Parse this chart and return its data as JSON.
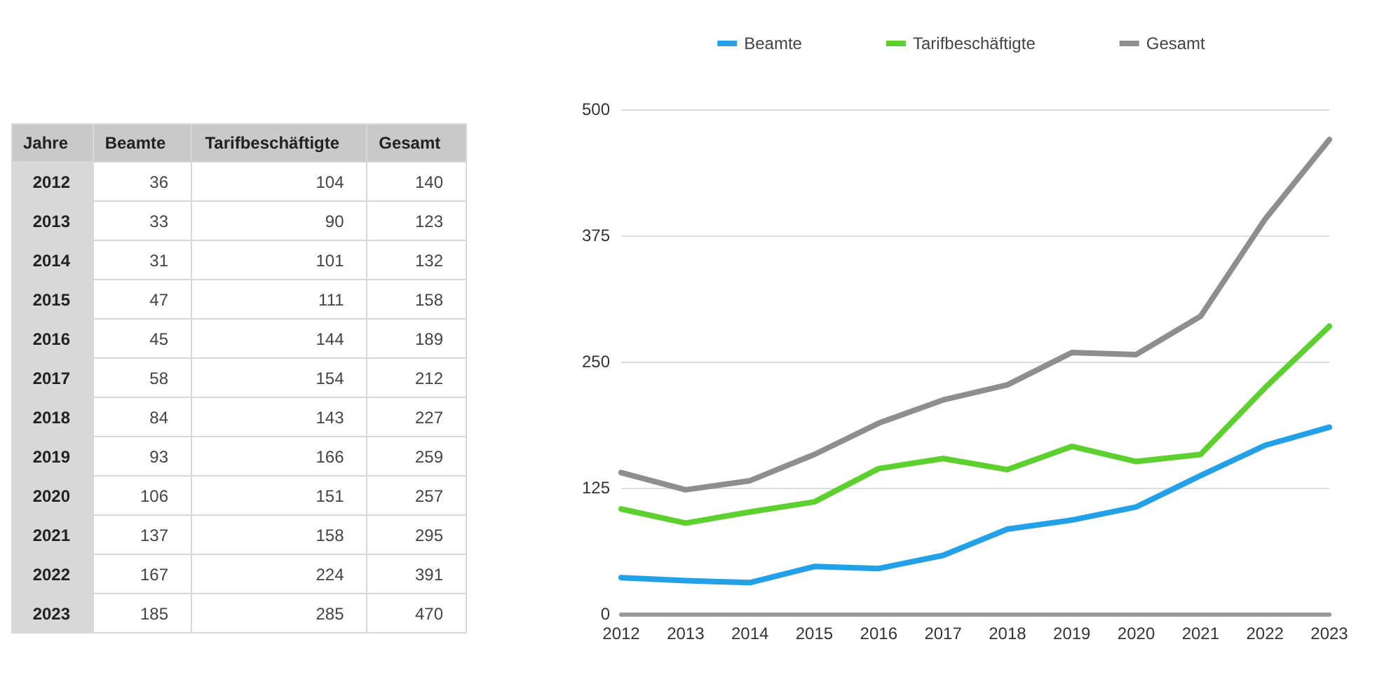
{
  "chart_data": [
    {
      "type": "heatmap",
      "ylabel": "Jahre",
      "data_labels": true,
      "categories": [
        "Beamte",
        "Tarifbeschäftigte",
        "Gesamt"
      ],
      "y_categories": [
        "2012",
        "2013",
        "2014",
        "2015",
        "2016",
        "2017",
        "2018",
        "2019",
        "2020",
        "2021",
        "2022",
        "2023"
      ],
      "cells": [
        [
          36,
          104,
          140
        ],
        [
          33,
          90,
          123
        ],
        [
          31,
          101,
          132
        ],
        [
          47,
          111,
          158
        ],
        [
          45,
          144,
          189
        ],
        [
          58,
          154,
          212
        ],
        [
          84,
          143,
          227
        ],
        [
          93,
          166,
          259
        ],
        [
          106,
          151,
          257
        ],
        [
          137,
          158,
          295
        ],
        [
          167,
          224,
          391
        ],
        [
          185,
          285,
          470
        ]
      ]
    },
    {
      "type": "line",
      "categories": [
        "2012",
        "2013",
        "2014",
        "2015",
        "2016",
        "2017",
        "2018",
        "2019",
        "2020",
        "2021",
        "2022",
        "2023"
      ],
      "series": [
        {
          "name": "Beamte",
          "color": "#22a0e8",
          "values": [
            36,
            33,
            31,
            47,
            45,
            58,
            84,
            93,
            106,
            137,
            167,
            185
          ]
        },
        {
          "name": "Tarifbeschäftigte",
          "color": "#5cd12e",
          "values": [
            104,
            90,
            101,
            111,
            144,
            154,
            143,
            166,
            151,
            158,
            224,
            285
          ]
        },
        {
          "name": "Gesamt",
          "color": "#8e8e8e",
          "values": [
            140,
            123,
            132,
            158,
            189,
            212,
            227,
            259,
            257,
            295,
            391,
            470
          ]
        }
      ],
      "ylim": [
        0,
        500
      ],
      "yticks": [
        0,
        125,
        250,
        375,
        500
      ],
      "grid": "y",
      "legend": "top",
      "marker": "none",
      "line_style": "solid"
    }
  ]
}
